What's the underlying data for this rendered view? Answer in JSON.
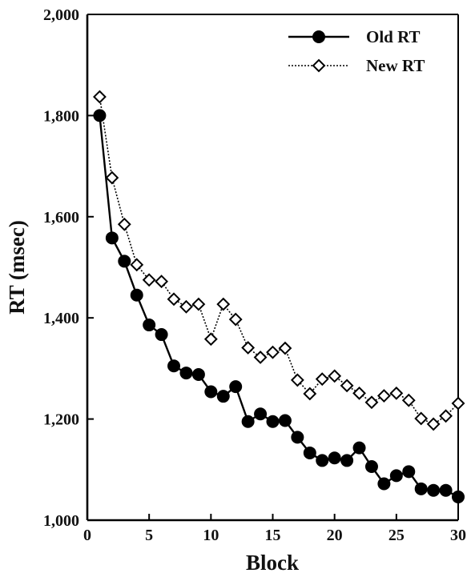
{
  "chart_data": {
    "type": "line",
    "xlabel": "Block",
    "ylabel": "RT (msec)",
    "xlim": [
      0,
      30
    ],
    "ylim": [
      1000,
      2000
    ],
    "x_ticks": [
      0,
      5,
      10,
      15,
      20,
      25,
      30
    ],
    "x_tick_labels": [
      "0",
      "5",
      "10",
      "15",
      "20",
      "25",
      "30"
    ],
    "y_ticks": [
      1000,
      1200,
      1400,
      1600,
      1800,
      2000
    ],
    "y_tick_labels": [
      "1,000",
      "1,200",
      "1,400",
      "1,600",
      "1,800",
      "2,000"
    ],
    "grid": false,
    "legend_position": "top-right",
    "x": [
      1,
      2,
      3,
      4,
      5,
      6,
      7,
      8,
      9,
      10,
      11,
      12,
      13,
      14,
      15,
      16,
      17,
      18,
      19,
      20,
      21,
      22,
      23,
      24,
      25,
      26,
      27,
      28,
      29,
      30
    ],
    "series": [
      {
        "name": "Old RT",
        "marker": "filled-circle",
        "line": "solid",
        "color": "#000000",
        "values": [
          1800,
          1558,
          1512,
          1445,
          1386,
          1367,
          1305,
          1291,
          1288,
          1254,
          1245,
          1264,
          1195,
          1210,
          1195,
          1197,
          1164,
          1133,
          1118,
          1123,
          1118,
          1143,
          1106,
          1072,
          1088,
          1096,
          1062,
          1059,
          1059,
          1046
        ]
      },
      {
        "name": "New RT",
        "marker": "open-diamond",
        "line": "dotted",
        "color": "#000000",
        "values": [
          1837,
          1677,
          1585,
          1505,
          1475,
          1472,
          1437,
          1422,
          1427,
          1358,
          1427,
          1397,
          1341,
          1322,
          1332,
          1340,
          1277,
          1250,
          1279,
          1285,
          1266,
          1251,
          1233,
          1246,
          1251,
          1237,
          1201,
          1190,
          1206,
          1231
        ]
      }
    ]
  }
}
